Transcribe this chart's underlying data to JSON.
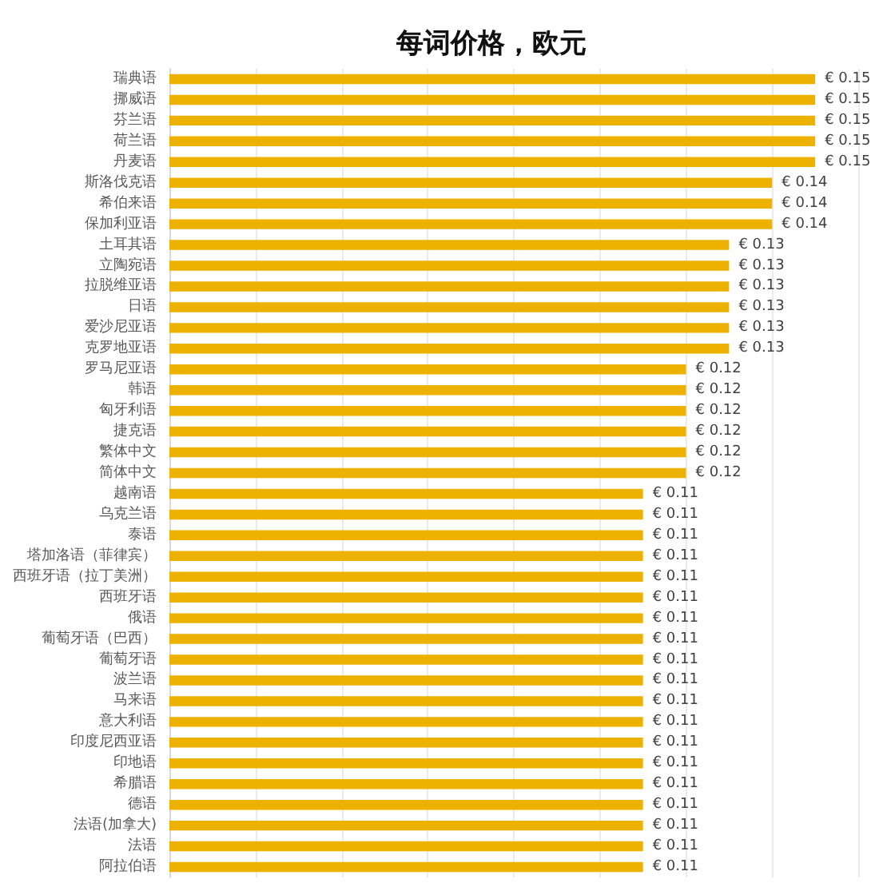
{
  "chart_data": {
    "type": "bar",
    "orientation": "horizontal",
    "title": "每词价格，欧元",
    "categories": [
      "瑞典语",
      "挪威语",
      "芬兰语",
      "荷兰语",
      "丹麦语",
      "斯洛伐克语",
      "希伯来语",
      "保加利亚语",
      "土耳其语",
      "立陶宛语",
      "拉脱维亚语",
      "日语",
      "爱沙尼亚语",
      "克罗地亚语",
      "罗马尼亚语",
      "韩语",
      "匈牙利语",
      "捷克语",
      "繁体中文",
      "简体中文",
      "越南语",
      "乌克兰语",
      "泰语",
      "塔加洛语（菲律宾）",
      "西班牙语（拉丁美洲）",
      "西班牙语",
      "俄语",
      "葡萄牙语（巴西）",
      "葡萄牙语",
      "波兰语",
      "马来语",
      "意大利语",
      "印度尼西亚语",
      "印地语",
      "希腊语",
      "德语",
      "法语(加拿大)",
      "法语",
      "阿拉伯语"
    ],
    "values": [
      0.15,
      0.15,
      0.15,
      0.15,
      0.15,
      0.14,
      0.14,
      0.14,
      0.13,
      0.13,
      0.13,
      0.13,
      0.13,
      0.13,
      0.12,
      0.12,
      0.12,
      0.12,
      0.12,
      0.12,
      0.11,
      0.11,
      0.11,
      0.11,
      0.11,
      0.11,
      0.11,
      0.11,
      0.11,
      0.11,
      0.11,
      0.11,
      0.11,
      0.11,
      0.11,
      0.11,
      0.11,
      0.11,
      0.11
    ],
    "value_labels": [
      "€ 0.15",
      "€ 0.15",
      "€ 0.15",
      "€ 0.15",
      "€ 0.15",
      "€ 0.14",
      "€ 0.14",
      "€ 0.14",
      "€ 0.13",
      "€ 0.13",
      "€ 0.13",
      "€ 0.13",
      "€ 0.13",
      "€ 0.13",
      "€ 0.12",
      "€ 0.12",
      "€ 0.12",
      "€ 0.12",
      "€ 0.12",
      "€ 0.12",
      "€ 0.11",
      "€ 0.11",
      "€ 0.11",
      "€ 0.11",
      "€ 0.11",
      "€ 0.11",
      "€ 0.11",
      "€ 0.11",
      "€ 0.11",
      "€ 0.11",
      "€ 0.11",
      "€ 0.11",
      "€ 0.11",
      "€ 0.11",
      "€ 0.11",
      "€ 0.11",
      "€ 0.11",
      "€ 0.11",
      "€ 0.11"
    ],
    "color": "#edb100",
    "xlim": [
      0,
      0.16
    ],
    "xticks": [
      {
        "value": 0,
        "label": null
      },
      {
        "value": 0.02,
        "label": null
      },
      {
        "value": 0.04,
        "label": null
      },
      {
        "value": 0.06,
        "label": null
      },
      {
        "value": 0.08,
        "label": null
      },
      {
        "value": 0.1,
        "label": null
      },
      {
        "value": 0.12,
        "label": null
      },
      {
        "value": 0.14,
        "label": null
      },
      {
        "value": 0.16,
        "label": null
      }
    ],
    "grid": "x",
    "tick_labels": "y"
  }
}
